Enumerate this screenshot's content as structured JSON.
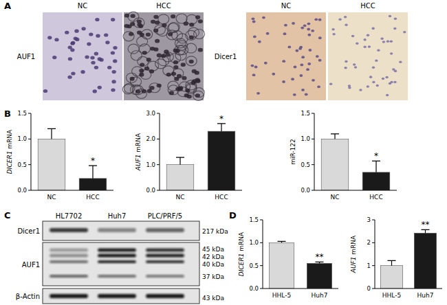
{
  "panel_letters": [
    "A",
    "B",
    "C",
    "D"
  ],
  "ihc": {
    "columns": [
      "NC",
      "HCC"
    ],
    "rows": [
      {
        "label": "AUF1"
      },
      {
        "label": "Dicer1"
      }
    ]
  },
  "blot": {
    "lanes": [
      "HL7702",
      "Huh7",
      "PLC/PRF/5"
    ],
    "rows": [
      {
        "label": "Dicer1",
        "sizes": [
          "217 kDa"
        ]
      },
      {
        "label": "AUF1",
        "sizes": [
          "45 kDa",
          "42 kDa",
          "40 kDa",
          "37 kDa"
        ]
      },
      {
        "label": "β-Actin",
        "sizes": [
          "43 kDa"
        ]
      }
    ]
  },
  "chart_data": [
    {
      "type": "bar",
      "ylabel": "DICER1 mRNA",
      "categories": [
        "NC",
        "HCC"
      ],
      "values": [
        1.0,
        0.23
      ],
      "errors": [
        0.2,
        0.25
      ],
      "annotations": [
        null,
        "*"
      ],
      "colors": [
        "#d9d9d9",
        "#1a1a1a"
      ],
      "ylim": [
        0,
        1.5
      ],
      "yticks": [
        {
          "value": 0,
          "label": "0.0"
        },
        {
          "value": 0.5,
          "label": "0.5"
        },
        {
          "value": 1,
          "label": "1.0"
        },
        {
          "value": 1.5,
          "label": "1.5"
        }
      ],
      "grid": false
    },
    {
      "type": "bar",
      "ylabel": "AUF1 mRNA",
      "categories": [
        "NC",
        "HCC"
      ],
      "values": [
        1.0,
        2.3
      ],
      "errors": [
        0.28,
        0.3
      ],
      "annotations": [
        null,
        "*"
      ],
      "colors": [
        "#d9d9d9",
        "#1a1a1a"
      ],
      "ylim": [
        0,
        3
      ],
      "yticks": [
        {
          "value": 0,
          "label": "0.0"
        },
        {
          "value": 1,
          "label": "1.0"
        },
        {
          "value": 2,
          "label": "2.0"
        },
        {
          "value": 3,
          "label": "3.0"
        }
      ],
      "grid": false
    },
    {
      "type": "bar",
      "ylabel": "miR-122",
      "categories": [
        "NC",
        "HCC"
      ],
      "values": [
        1.0,
        0.35
      ],
      "errors": [
        0.1,
        0.22
      ],
      "annotations": [
        null,
        "*"
      ],
      "colors": [
        "#d9d9d9",
        "#1a1a1a"
      ],
      "ylim": [
        0,
        1.5
      ],
      "yticks": [
        {
          "value": 0,
          "label": "0.0"
        },
        {
          "value": 0.5,
          "label": "0.5"
        },
        {
          "value": 1,
          "label": "1.0"
        },
        {
          "value": 1.5,
          "label": "1.5"
        }
      ],
      "grid": false
    },
    {
      "type": "bar",
      "ylabel": "DICER1 mRNA",
      "categories": [
        "HHL-5",
        "Huh7"
      ],
      "values": [
        1.0,
        0.55
      ],
      "errors": [
        0.03,
        0.03
      ],
      "annotations": [
        null,
        "**"
      ],
      "colors": [
        "#d9d9d9",
        "#1a1a1a"
      ],
      "ylim": [
        0,
        1.5
      ],
      "yticks": [
        {
          "value": 0,
          "label": "0.0"
        },
        {
          "value": 0.5,
          "label": "0.5"
        },
        {
          "value": 1,
          "label": "1.0"
        },
        {
          "value": 1.5,
          "label": "1.5"
        }
      ],
      "grid": false
    },
    {
      "type": "bar",
      "ylabel": "AUF1 mRNA",
      "categories": [
        "HHL-5",
        "Huh7"
      ],
      "values": [
        1.0,
        2.42
      ],
      "errors": [
        0.22,
        0.15
      ],
      "annotations": [
        null,
        "**"
      ],
      "colors": [
        "#d9d9d9",
        "#1a1a1a"
      ],
      "ylim": [
        0,
        3
      ],
      "yticks": [
        {
          "value": 0,
          "label": "0"
        },
        {
          "value": 1,
          "label": "1"
        },
        {
          "value": 2,
          "label": "2"
        },
        {
          "value": 3,
          "label": "3"
        }
      ],
      "grid": false
    }
  ]
}
